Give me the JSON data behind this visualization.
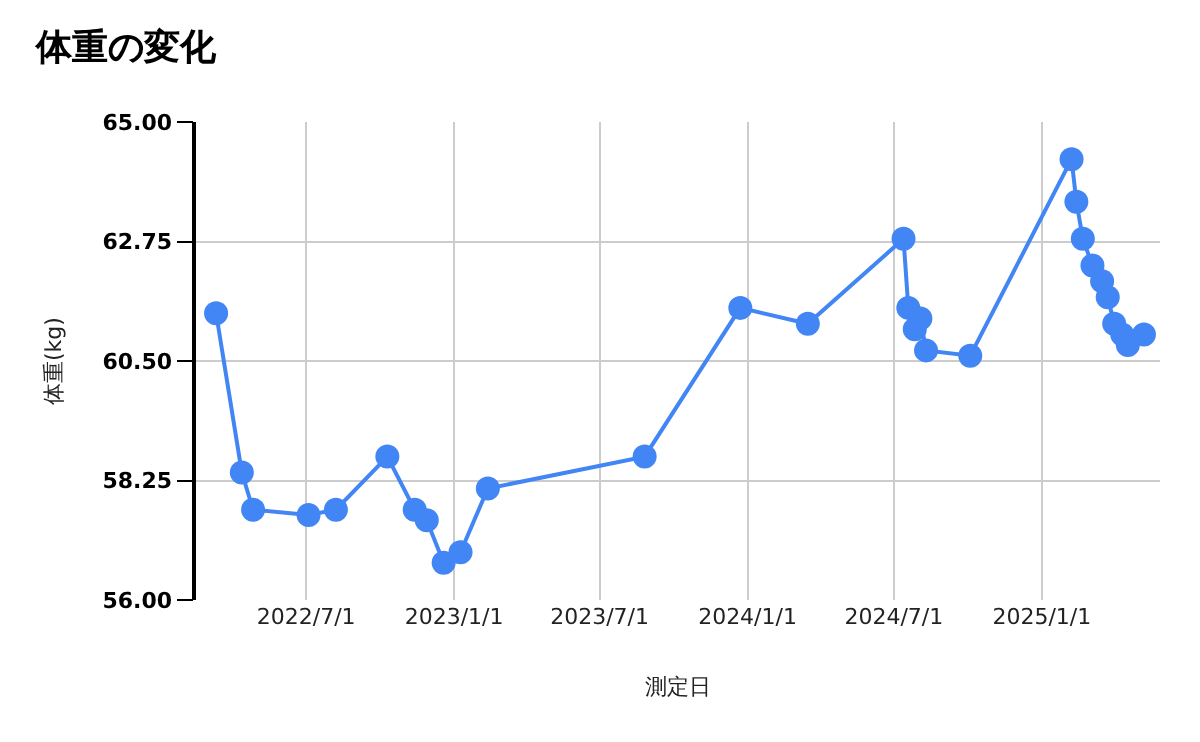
{
  "chart_data": {
    "type": "line",
    "title": "体重の変化",
    "xlabel": "測定日",
    "ylabel": "体重(kg)",
    "x": [
      "2022-03-11",
      "2022-04-12",
      "2022-04-26",
      "2022-07-04",
      "2022-08-07",
      "2022-10-10",
      "2022-11-13",
      "2022-11-28",
      "2022-12-19",
      "2023-01-09",
      "2023-02-12",
      "2023-08-26",
      "2023-12-23",
      "2024-03-16",
      "2024-07-13",
      "2024-07-19",
      "2024-07-27",
      "2024-08-03",
      "2024-08-10",
      "2024-10-04",
      "2025-02-07",
      "2025-02-13",
      "2025-02-21",
      "2025-03-05",
      "2025-03-17",
      "2025-03-24",
      "2025-04-01",
      "2025-04-11",
      "2025-04-18",
      "2025-05-08"
    ],
    "series": [
      {
        "color": "#4285f4",
        "values": [
          61.4,
          58.4,
          57.7,
          57.6,
          57.7,
          58.7,
          57.7,
          57.5,
          56.7,
          56.9,
          58.1,
          58.7,
          61.5,
          61.2,
          62.8,
          61.5,
          61.1,
          61.3,
          60.7,
          60.6,
          64.3,
          63.5,
          62.8,
          62.3,
          62.0,
          61.7,
          61.2,
          61.0,
          60.8,
          61.0
        ]
      }
    ],
    "xlim": [
      "2022-02-14",
      "2025-05-28"
    ],
    "xticks": [
      {
        "value": "2022-07-01",
        "label": "2022/7/1"
      },
      {
        "value": "2023-01-01",
        "label": "2023/1/1"
      },
      {
        "value": "2023-07-01",
        "label": "2023/7/1"
      },
      {
        "value": "2024-01-01",
        "label": "2024/1/1"
      },
      {
        "value": "2024-07-01",
        "label": "2024/7/1"
      },
      {
        "value": "2025-01-01",
        "label": "2025/1/1"
      }
    ],
    "ylim": [
      56,
      65
    ],
    "yticks": [
      {
        "value": 56,
        "label": "56.00"
      },
      {
        "value": 58.25,
        "label": "58.25"
      },
      {
        "value": 60.5,
        "label": "60.50"
      },
      {
        "value": 62.75,
        "label": "62.75"
      },
      {
        "value": 65,
        "label": "65.00"
      }
    ],
    "grid": true,
    "marker": "circle",
    "line_style": "solid"
  }
}
